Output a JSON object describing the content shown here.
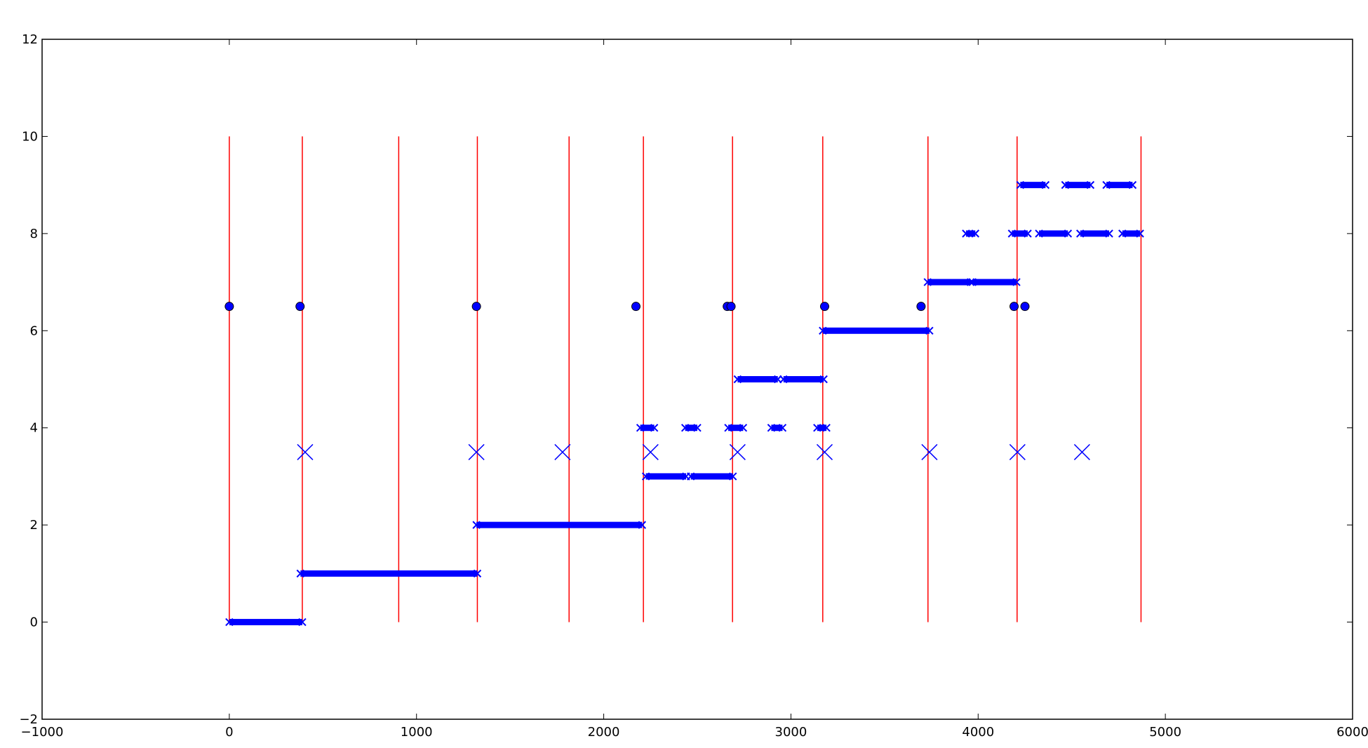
{
  "chart_data": {
    "type": "scatter",
    "title": "",
    "xlabel": "",
    "ylabel": "",
    "xlim": [
      -1000,
      6000
    ],
    "ylim": [
      -2,
      12
    ],
    "grid": false,
    "x_ticks": [
      -1000,
      0,
      1000,
      2000,
      3000,
      4000,
      5000,
      6000
    ],
    "y_ticks": [
      -2,
      0,
      2,
      4,
      6,
      8,
      10,
      12
    ],
    "x_tick_labels": [
      "−1000",
      "0",
      "1000",
      "2000",
      "3000",
      "4000",
      "5000",
      "6000"
    ],
    "y_tick_labels": [
      "−2",
      "0",
      "2",
      "4",
      "6",
      "8",
      "10",
      "12"
    ],
    "colors": {
      "vlines": "#ff0000",
      "markers": "#0000ff",
      "dots": "#0000ff",
      "dot_edge": "#000000"
    },
    "series": [
      {
        "kind": "vertical_lines",
        "color": "#ff0000",
        "y_range": [
          0,
          10
        ],
        "x": [
          0,
          390,
          905,
          1325,
          1815,
          2212,
          2688,
          3170,
          3732,
          4208,
          4870
        ]
      },
      {
        "kind": "circles",
        "color": "#0000ff",
        "y": 6.5,
        "x": [
          0,
          378,
          1320,
          2172,
          2660,
          2680,
          3180,
          3695,
          4192,
          4250
        ]
      },
      {
        "kind": "large_x_markers",
        "color": "#0000ff",
        "y": 3.5,
        "x": [
          405,
          1320,
          1780,
          2250,
          2715,
          3180,
          3740,
          4210,
          4555
        ]
      },
      {
        "kind": "dense_x_marker_runs",
        "color": "#0000ff",
        "segments": [
          {
            "y": 0,
            "x": [
              0,
              390
            ]
          },
          {
            "y": 1,
            "x": [
              380,
              1325
            ]
          },
          {
            "y": 2,
            "x": [
              1320,
              2205
            ]
          },
          {
            "y": 3,
            "x": [
              2225,
              2440
            ]
          },
          {
            "y": 3,
            "x": [
              2465,
              2690
            ]
          },
          {
            "y": 4,
            "x": [
              2195,
              2270
            ]
          },
          {
            "y": 4,
            "x": [
              2435,
              2500
            ]
          },
          {
            "y": 4,
            "x": [
              2665,
              2745
            ]
          },
          {
            "y": 4,
            "x": [
              2895,
              2955
            ]
          },
          {
            "y": 4,
            "x": [
              3140,
              3190
            ]
          },
          {
            "y": 5,
            "x": [
              2715,
              2930
            ]
          },
          {
            "y": 5,
            "x": [
              2960,
              3175
            ]
          },
          {
            "y": 6,
            "x": [
              3170,
              3740
            ]
          },
          {
            "y": 7,
            "x": [
              3730,
              3960
            ]
          },
          {
            "y": 7,
            "x": [
              3970,
              4205
            ]
          },
          {
            "y": 8,
            "x": [
              3935,
              3985
            ]
          },
          {
            "y": 8,
            "x": [
              4180,
              4265
            ]
          },
          {
            "y": 8,
            "x": [
              4325,
              4480
            ]
          },
          {
            "y": 8,
            "x": [
              4545,
              4700
            ]
          },
          {
            "y": 8,
            "x": [
              4770,
              4865
            ]
          },
          {
            "y": 9,
            "x": [
              4225,
              4360
            ]
          },
          {
            "y": 9,
            "x": [
              4465,
              4600
            ]
          },
          {
            "y": 9,
            "x": [
              4685,
              4825
            ]
          }
        ]
      }
    ]
  }
}
